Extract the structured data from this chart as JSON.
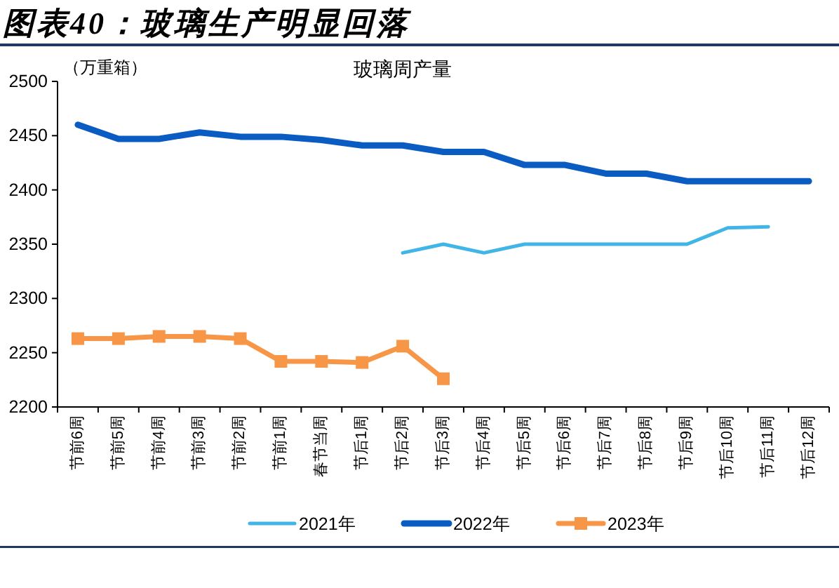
{
  "chart_data": {
    "type": "line",
    "title": "图表40：玻璃生产明显回落",
    "subtitle": "玻璃周产量",
    "ylabel": "（万重箱）",
    "categories": [
      "节前6周",
      "节前5周",
      "节前4周",
      "节前3周",
      "节前2周",
      "节前1周",
      "春节当周",
      "节后1周",
      "节后2周",
      "节后3周",
      "节后4周",
      "节后5周",
      "节后6周",
      "节后7周",
      "节后8周",
      "节后9周",
      "节后10周",
      "节后11周",
      "节后12周"
    ],
    "series": [
      {
        "name": "2021年",
        "color": "#41b6e6",
        "values": [
          null,
          null,
          null,
          null,
          null,
          null,
          null,
          null,
          2342,
          2350,
          2342,
          2350,
          2350,
          2350,
          2350,
          2350,
          2365,
          2366,
          null
        ]
      },
      {
        "name": "2022年",
        "color": "#0a5cc2",
        "values": [
          2460,
          2447,
          2447,
          2453,
          2449,
          2449,
          2446,
          2441,
          2441,
          2435,
          2435,
          2423,
          2423,
          2415,
          2415,
          2408,
          2408,
          2408,
          2408
        ]
      },
      {
        "name": "2023年",
        "color": "#f79646",
        "marker": "square",
        "values": [
          2263,
          2263,
          2265,
          2265,
          2263,
          2242,
          2242,
          2241,
          2256,
          2226,
          null,
          null,
          null,
          null,
          null,
          null,
          null,
          null,
          null
        ]
      }
    ],
    "ylim": [
      2200,
      2500
    ],
    "yticks": [
      2200,
      2250,
      2300,
      2350,
      2400,
      2450,
      2500
    ],
    "legend": "bottom"
  }
}
